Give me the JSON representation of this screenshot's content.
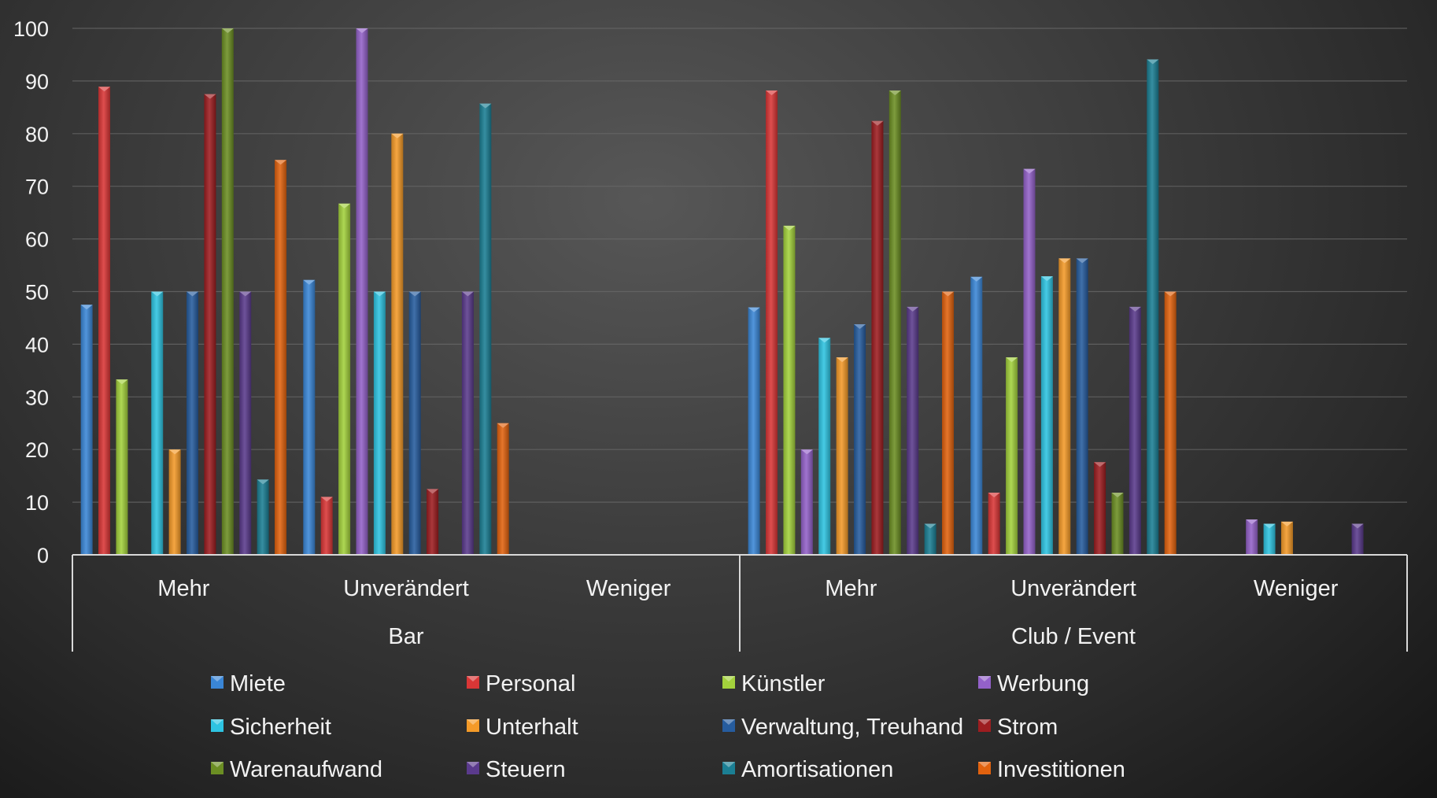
{
  "chart_data": {
    "type": "bar",
    "title": "",
    "xlabel": "",
    "ylabel": "",
    "ylim": [
      0,
      100
    ],
    "yticks": [
      0,
      10,
      20,
      30,
      40,
      50,
      60,
      70,
      80,
      90,
      100
    ],
    "grid": true,
    "legend_position": "bottom",
    "groups": [
      {
        "label": "Bar",
        "categories": [
          "Mehr",
          "Unverändert",
          "Weniger"
        ]
      },
      {
        "label": "Club / Event",
        "categories": [
          "Mehr",
          "Unverändert",
          "Weniger"
        ]
      }
    ],
    "series": [
      {
        "name": "Miete",
        "color": "#3a86d6",
        "values": [
          47.5,
          52.2,
          0,
          47,
          52.8,
          0
        ]
      },
      {
        "name": "Personal",
        "color": "#d93636",
        "values": [
          88.9,
          11,
          0,
          88.2,
          11.8,
          0
        ]
      },
      {
        "name": "Künstler",
        "color": "#a3d13c",
        "values": [
          33.3,
          66.7,
          0,
          62.5,
          37.5,
          0
        ]
      },
      {
        "name": "Werbung",
        "color": "#9361c9",
        "values": [
          0,
          100,
          0,
          20,
          73.3,
          6.7
        ]
      },
      {
        "name": "Sicherheit",
        "color": "#2ec4e2",
        "values": [
          50,
          50,
          0,
          41.2,
          52.9,
          5.9
        ]
      },
      {
        "name": "Unterhalt",
        "color": "#f49a28",
        "values": [
          20,
          80,
          0,
          37.5,
          56.3,
          6.3
        ]
      },
      {
        "name": "Verwaltung, Treuhand",
        "color": "#265c9e",
        "values": [
          50,
          50,
          0,
          43.8,
          56.3,
          0
        ]
      },
      {
        "name": "Strom",
        "color": "#9d1d20",
        "values": [
          87.5,
          12.5,
          0,
          82.4,
          17.6,
          0
        ]
      },
      {
        "name": "Warenaufwand",
        "color": "#6b8e23",
        "values": [
          100,
          0,
          0,
          88.2,
          11.8,
          0
        ]
      },
      {
        "name": "Steuern",
        "color": "#5a3a8c",
        "values": [
          50,
          50,
          0,
          47.1,
          47.1,
          5.9
        ]
      },
      {
        "name": "Amortisationen",
        "color": "#1b7f94",
        "values": [
          14.3,
          85.7,
          0,
          5.9,
          94.1,
          0
        ]
      },
      {
        "name": "Investitionen",
        "color": "#e2620e",
        "values": [
          75,
          25,
          0,
          50,
          50,
          0
        ]
      }
    ]
  }
}
